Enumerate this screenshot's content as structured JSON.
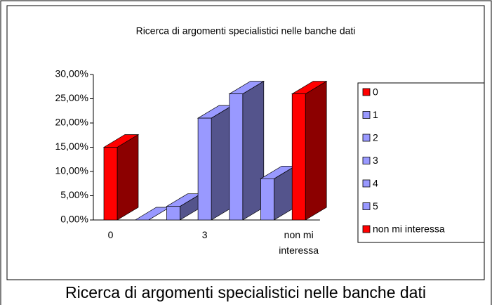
{
  "chart_data": {
    "type": "bar3d",
    "title": "Ricerca di argomenti specialistici nelle banche dati",
    "caption": "Ricerca di argomenti specialistici nelle banche dati",
    "categories": [
      "0",
      null,
      null,
      "3",
      null,
      null,
      "non mi interessa"
    ],
    "values": [
      15,
      0,
      2.8,
      21,
      26,
      8.5,
      26
    ],
    "colors": [
      "#ff0000",
      "#9999ff",
      "#9999ff",
      "#9999ff",
      "#9999ff",
      "#9999ff",
      "#ff0000"
    ],
    "legend": [
      {
        "name": "0",
        "color": "#ff0000"
      },
      {
        "name": "1",
        "color": "#9999ff"
      },
      {
        "name": "2",
        "color": "#9999ff"
      },
      {
        "name": "3",
        "color": "#9999ff"
      },
      {
        "name": "4",
        "color": "#9999ff"
      },
      {
        "name": "5",
        "color": "#9999ff"
      },
      {
        "name": "non mi interessa",
        "color": "#ff0000"
      }
    ],
    "ylim": [
      0,
      30
    ],
    "yticks": [
      {
        "value": 0,
        "label": "0,00%"
      },
      {
        "value": 5,
        "label": "5,00%"
      },
      {
        "value": 10,
        "label": "10,00%"
      },
      {
        "value": 15,
        "label": "15,00%"
      },
      {
        "value": 20,
        "label": "20,00%"
      },
      {
        "value": 25,
        "label": "25,00%"
      },
      {
        "value": 30,
        "label": "30,00%"
      }
    ]
  }
}
